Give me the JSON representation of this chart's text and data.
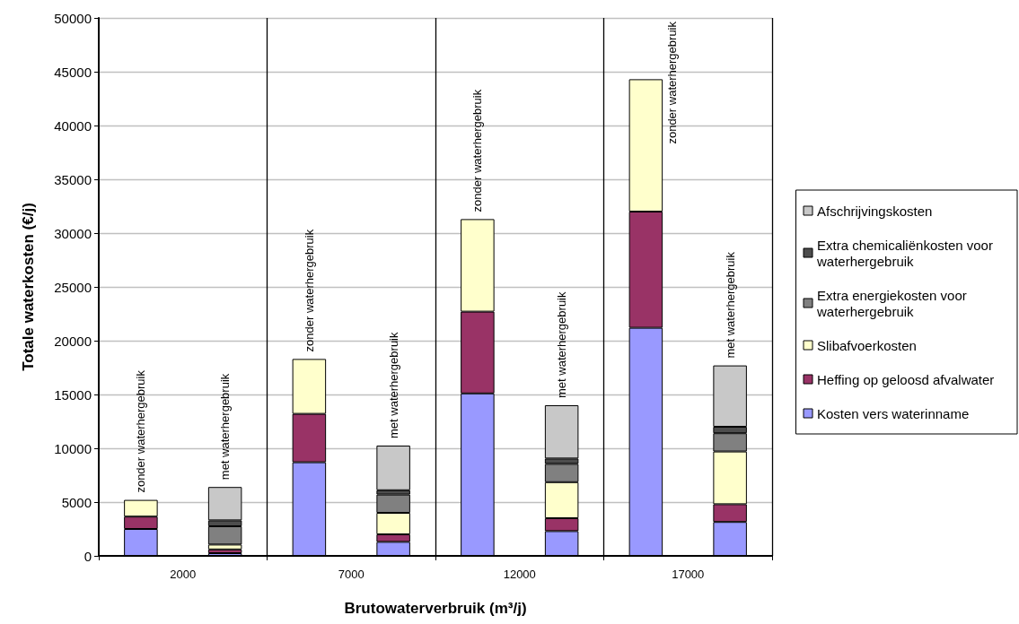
{
  "chart_data": {
    "type": "bar",
    "stacked": true,
    "xlabel": "Brutowaterverbruik (m³/j)",
    "ylabel": "Totale waterkosten (€/j)",
    "categories": [
      "zonder waterhergebruik",
      "met waterhergebruik",
      "zonder waterhergebruik",
      "met waterhergebruik",
      "zonder waterhergebruik",
      "met waterhergebruik",
      "zonder waterhergebruik",
      "met waterhergebruik"
    ],
    "annotations": [
      "2000",
      "7000",
      "12000",
      "17000"
    ],
    "series": [
      {
        "name": "Kosten vers waterinname",
        "color": "#9999ff",
        "values": [
          2500,
          250,
          8700,
          1300,
          15100,
          2300,
          21200,
          3150
        ]
      },
      {
        "name": "Heffing op geloosd afvalwater",
        "color": "#993366",
        "values": [
          1150,
          350,
          4500,
          700,
          7600,
          1200,
          10800,
          1650
        ]
      },
      {
        "name": "Slibafvoerkosten",
        "color": "#ffffcc",
        "values": [
          1550,
          450,
          5100,
          2000,
          8600,
          3350,
          12300,
          4900
        ]
      },
      {
        "name": "Extra energiekosten voor waterhergebruik",
        "color": "#808080",
        "values": [
          null,
          1700,
          null,
          1700,
          null,
          1700,
          null,
          1700
        ]
      },
      {
        "name": "Extra chemicaliënkosten voor waterhergebruik",
        "color": "#4d4d4d",
        "values": [
          null,
          550,
          null,
          400,
          null,
          500,
          null,
          600
        ]
      },
      {
        "name": "Afschrijvingskosten",
        "color": "#c8c8c8",
        "values": [
          null,
          3100,
          null,
          4150,
          null,
          4950,
          null,
          5700
        ]
      }
    ],
    "ylim": [
      0,
      50000
    ],
    "yticks": [
      0,
      5000,
      10000,
      15000,
      20000,
      25000,
      30000,
      35000,
      40000,
      45000,
      50000
    ],
    "grid": "y",
    "legend": "right"
  }
}
